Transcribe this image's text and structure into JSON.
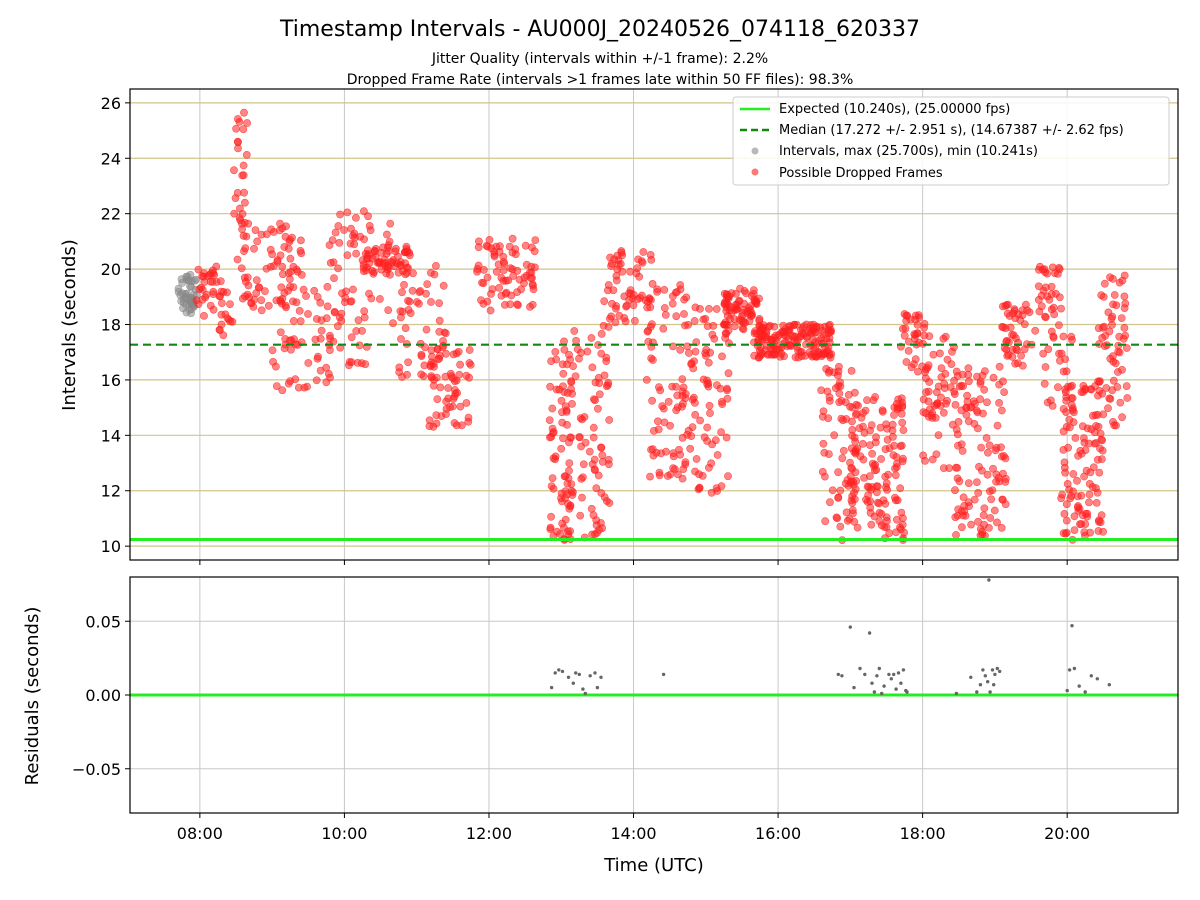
{
  "figure": {
    "title": "Timestamp Intervals - AU000J_20240526_074118_620337",
    "subtitle_1": "Jitter Quality (intervals within +/-1 frame): 2.2%",
    "subtitle_2": "Dropped Frame Rate (intervals >1 frames late within 50 FF files): 98.3%"
  },
  "colors": {
    "expected": "#22ee22",
    "median": "#118811",
    "intervals": "#888888",
    "dropped": "#ff2020",
    "hgrid_top": "#d2c48a",
    "grid": "#c8c8c8",
    "residual_points": "#666666"
  },
  "chart_data": [
    {
      "type": "scatter",
      "xlabel": "",
      "ylabel": "Intervals (seconds)",
      "xlim": [
        "07:02",
        "21:32"
      ],
      "ylim": [
        9.5,
        26.5
      ],
      "x_ticks": [
        "08:00",
        "10:00",
        "12:00",
        "14:00",
        "16:00",
        "18:00",
        "20:00"
      ],
      "y_ticks": [
        10,
        12,
        14,
        16,
        18,
        20,
        22,
        24,
        26
      ],
      "grid": "horizontal",
      "legend_position": "top-right",
      "lines": [
        {
          "name": "Expected (10.240s), (25.00000 fps)",
          "style": "solid",
          "y": 10.24
        },
        {
          "name": "Median (17.272 +/- 2.951 s), (14.67387 +/- 2.62 fps)",
          "style": "dashed",
          "y": 17.272
        }
      ],
      "series": [
        {
          "name": "Intervals, max (25.700s), min (10.241s)",
          "marker": "circle",
          "clusters": [
            {
              "x_range": [
                "07:42",
                "07:58"
              ],
              "y_range": [
                18.4,
                19.8
              ],
              "n": 45
            }
          ]
        },
        {
          "name": "Possible Dropped Frames",
          "marker": "circle",
          "clusters": [
            {
              "x_range": [
                "07:57",
                "08:18"
              ],
              "y_range": [
                18.3,
                20.1
              ],
              "n": 30
            },
            {
              "x_range": [
                "08:15",
                "08:28"
              ],
              "y_range": [
                17.6,
                19.2
              ],
              "n": 16
            },
            {
              "x_range": [
                "08:28",
                "08:40"
              ],
              "y_range": [
                19.5,
                25.7
              ],
              "n": 30
            },
            {
              "x_range": [
                "08:35",
                "09:25"
              ],
              "y_range": [
                18.5,
                21.7
              ],
              "n": 70
            },
            {
              "x_range": [
                "09:00",
                "09:50"
              ],
              "y_range": [
                15.6,
                19.5
              ],
              "n": 55
            },
            {
              "x_range": [
                "09:45",
                "10:20"
              ],
              "y_range": [
                16.5,
                22.1
              ],
              "n": 60
            },
            {
              "x_range": [
                "10:15",
                "10:55"
              ],
              "y_range": [
                19.8,
                20.9
              ],
              "n": 55
            },
            {
              "x_range": [
                "10:20",
                "10:50"
              ],
              "y_range": [
                17.8,
                21.9
              ],
              "n": 20
            },
            {
              "x_range": [
                "10:45",
                "11:25"
              ],
              "y_range": [
                16.0,
                20.3
              ],
              "n": 50
            },
            {
              "x_range": [
                "11:10",
                "11:45"
              ],
              "y_range": [
                14.2,
                17.2
              ],
              "n": 55
            },
            {
              "x_range": [
                "11:50",
                "12:40"
              ],
              "y_range": [
                18.5,
                21.2
              ],
              "n": 75
            },
            {
              "x_range": [
                "12:50",
                "13:10"
              ],
              "y_range": [
                10.2,
                17.3
              ],
              "n": 60
            },
            {
              "x_range": [
                "13:00",
                "13:40"
              ],
              "y_range": [
                10.3,
                17.8
              ],
              "n": 90
            },
            {
              "x_range": [
                "13:35",
                "14:15"
              ],
              "y_range": [
                17.9,
                20.9
              ],
              "n": 60
            },
            {
              "x_range": [
                "14:10",
                "14:45"
              ],
              "y_range": [
                12.5,
                19.5
              ],
              "n": 70
            },
            {
              "x_range": [
                "14:40",
                "15:20"
              ],
              "y_range": [
                11.8,
                19.0
              ],
              "n": 90
            },
            {
              "x_range": [
                "15:15",
                "15:45"
              ],
              "y_range": [
                17.8,
                19.3
              ],
              "n": 70
            },
            {
              "x_range": [
                "15:40",
                "16:45"
              ],
              "y_range": [
                16.8,
                18.0
              ],
              "n": 170
            },
            {
              "x_range": [
                "16:35",
                "17:05"
              ],
              "y_range": [
                10.2,
                16.5
              ],
              "n": 70
            },
            {
              "x_range": [
                "17:00",
                "17:45"
              ],
              "y_range": [
                10.2,
                15.5
              ],
              "n": 130
            },
            {
              "x_range": [
                "17:40",
                "18:05"
              ],
              "y_range": [
                16.2,
                18.4
              ],
              "n": 35
            },
            {
              "x_range": [
                "18:00",
                "18:30"
              ],
              "y_range": [
                12.8,
                17.6
              ],
              "n": 55
            },
            {
              "x_range": [
                "18:25",
                "19:10"
              ],
              "y_range": [
                10.3,
                16.5
              ],
              "n": 110
            },
            {
              "x_range": [
                "19:05",
                "19:35"
              ],
              "y_range": [
                16.5,
                18.8
              ],
              "n": 45
            },
            {
              "x_range": [
                "19:35",
                "19:55"
              ],
              "y_range": [
                18.2,
                20.2
              ],
              "n": 30
            },
            {
              "x_range": [
                "19:40",
                "20:05"
              ],
              "y_range": [
                14.8,
                18.0
              ],
              "n": 25
            },
            {
              "x_range": [
                "19:55",
                "20:30"
              ],
              "y_range": [
                10.2,
                15.8
              ],
              "n": 110
            },
            {
              "x_range": [
                "20:25",
                "20:50"
              ],
              "y_range": [
                14.2,
                19.8
              ],
              "n": 60
            }
          ]
        }
      ]
    },
    {
      "type": "scatter",
      "xlabel": "Time (UTC)",
      "ylabel": "Residuals (seconds)",
      "xlim": [
        "07:02",
        "21:32"
      ],
      "ylim": [
        -0.08,
        0.08
      ],
      "x_ticks": [
        "08:00",
        "10:00",
        "12:00",
        "14:00",
        "16:00",
        "18:00",
        "20:00"
      ],
      "y_ticks": [
        "0.05",
        "0.00",
        "−0.05"
      ],
      "y_tick_values": [
        0.05,
        0.0,
        -0.05
      ],
      "grid": "both",
      "lines": [
        {
          "name": "zero",
          "style": "solid",
          "y": 0.0
        }
      ],
      "series": [
        {
          "name": "Residuals",
          "points": [
            [
              "12:52",
              0.005
            ],
            [
              "12:55",
              0.015
            ],
            [
              "12:58",
              0.017
            ],
            [
              "13:01",
              0.016
            ],
            [
              "13:06",
              0.012
            ],
            [
              "13:10",
              0.008
            ],
            [
              "13:12",
              0.015
            ],
            [
              "13:15",
              0.014
            ],
            [
              "13:18",
              0.004
            ],
            [
              "13:20",
              0.001
            ],
            [
              "13:24",
              0.013
            ],
            [
              "13:28",
              0.015
            ],
            [
              "13:30",
              0.005
            ],
            [
              "13:33",
              0.012
            ],
            [
              "14:25",
              0.014
            ],
            [
              "16:50",
              0.014
            ],
            [
              "16:53",
              0.013
            ],
            [
              "17:00",
              0.046
            ],
            [
              "17:03",
              0.005
            ],
            [
              "17:08",
              0.018
            ],
            [
              "17:12",
              0.014
            ],
            [
              "17:16",
              0.042
            ],
            [
              "17:18",
              0.008
            ],
            [
              "17:20",
              0.002
            ],
            [
              "17:22",
              0.013
            ],
            [
              "17:24",
              0.018
            ],
            [
              "17:26",
              0.001
            ],
            [
              "17:28",
              0.006
            ],
            [
              "17:32",
              0.014
            ],
            [
              "17:34",
              0.011
            ],
            [
              "17:36",
              0.014
            ],
            [
              "17:38",
              0.004
            ],
            [
              "17:40",
              0.015
            ],
            [
              "17:42",
              0.008
            ],
            [
              "17:44",
              0.017
            ],
            [
              "17:46",
              0.003
            ],
            [
              "17:47",
              0.002
            ],
            [
              "18:28",
              0.001
            ],
            [
              "18:40",
              0.012
            ],
            [
              "18:45",
              0.002
            ],
            [
              "18:48",
              0.007
            ],
            [
              "18:50",
              0.017
            ],
            [
              "18:52",
              0.013
            ],
            [
              "18:54",
              0.009
            ],
            [
              "18:56",
              0.002
            ],
            [
              "18:58",
              0.017
            ],
            [
              "18:59",
              0.007
            ],
            [
              "19:00",
              0.014
            ],
            [
              "19:02",
              0.018
            ],
            [
              "19:04",
              0.016
            ],
            [
              "18:55",
              0.078
            ],
            [
              "20:00",
              0.003
            ],
            [
              "20:02",
              0.017
            ],
            [
              "20:04",
              0.047
            ],
            [
              "20:06",
              0.018
            ],
            [
              "20:10",
              0.006
            ],
            [
              "20:15",
              0.002
            ],
            [
              "20:20",
              0.013
            ],
            [
              "20:25",
              0.011
            ],
            [
              "20:35",
              0.007
            ]
          ]
        }
      ]
    }
  ]
}
